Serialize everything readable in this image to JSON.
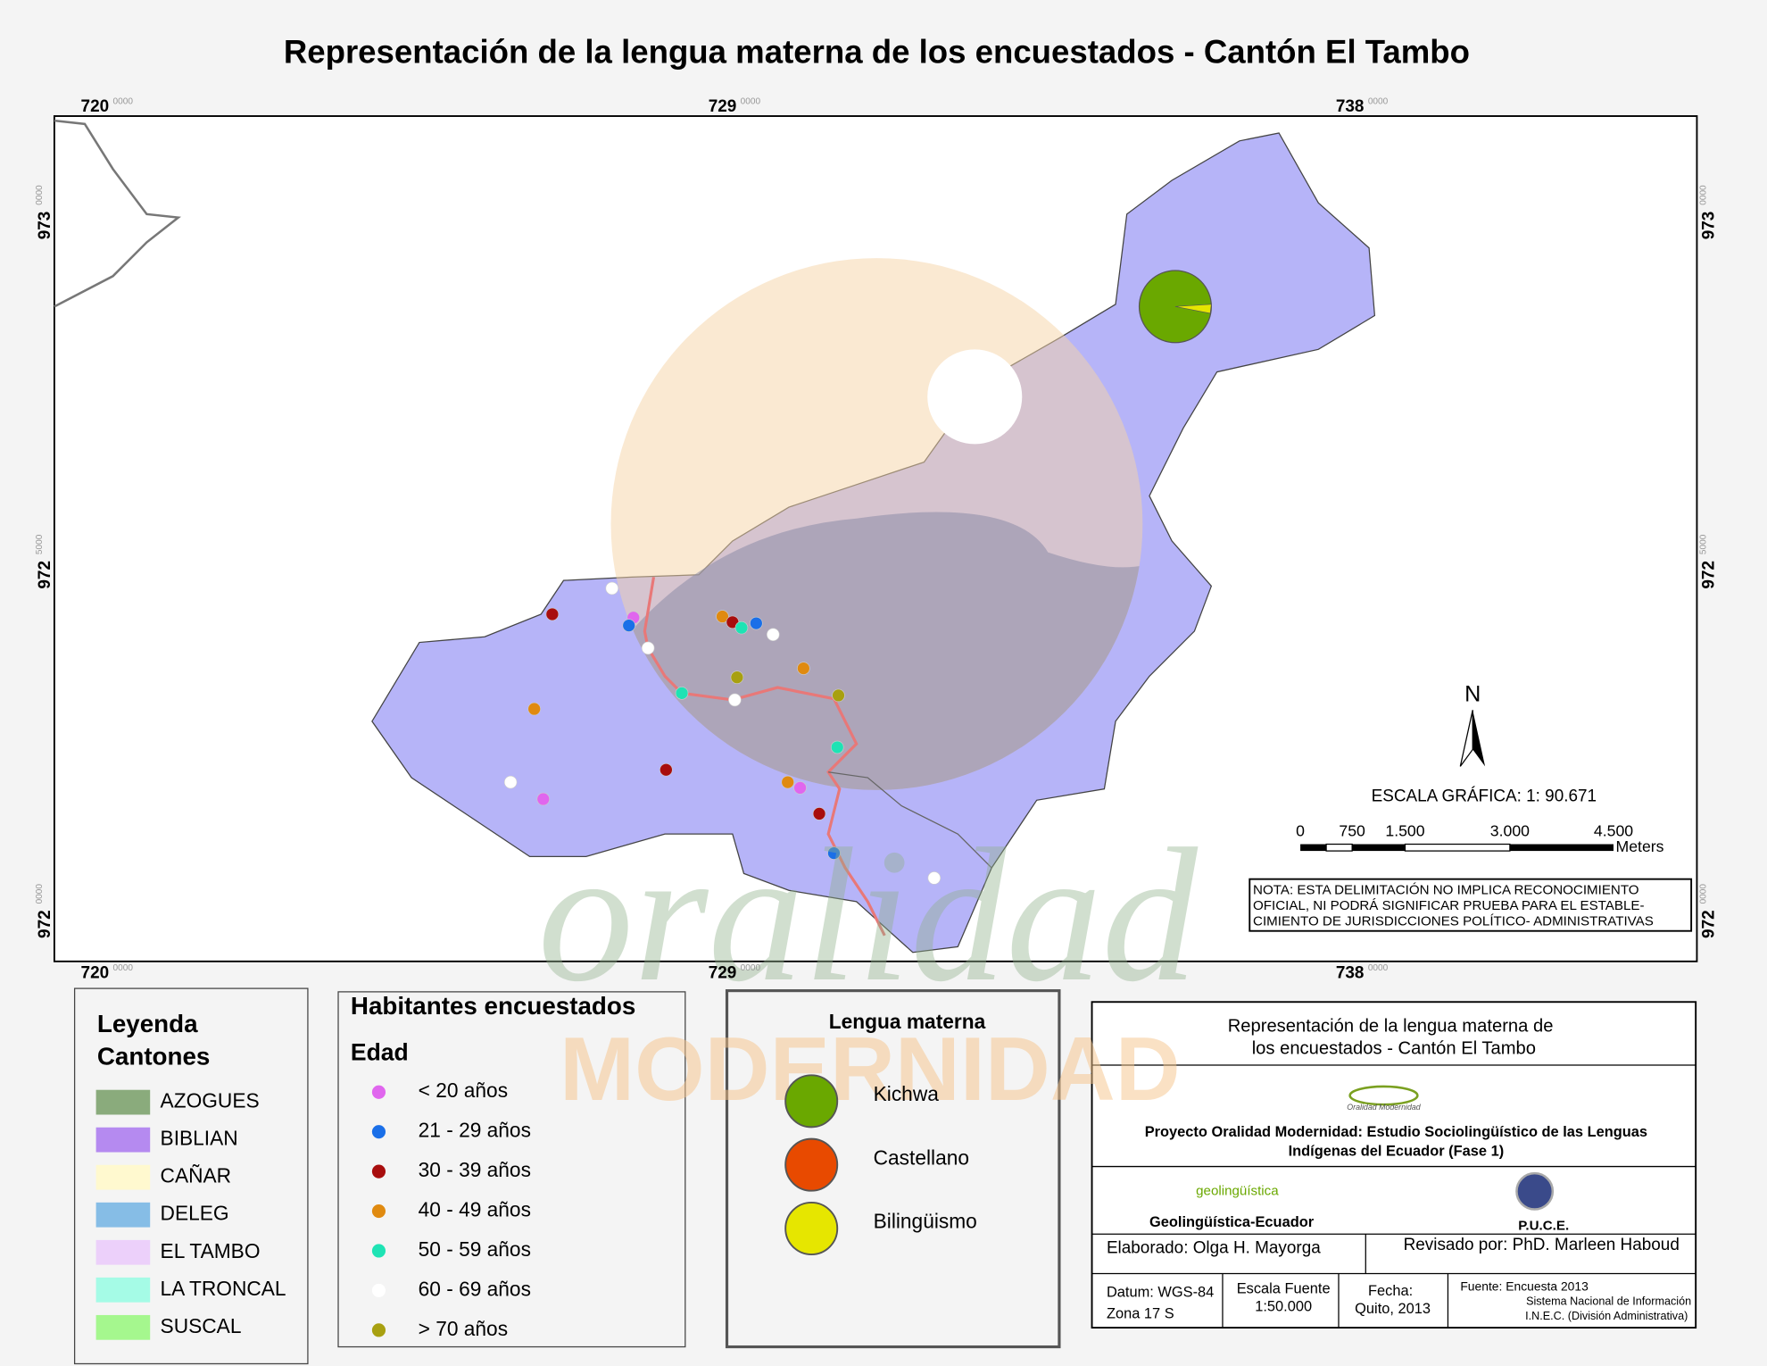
{
  "title": "Representación de la lengua materna de los encuestados - Cantón El Tambo",
  "map": {
    "x_labels": [
      {
        "main": "720",
        "sup": "0000"
      },
      {
        "main": "729",
        "sup": "0000"
      },
      {
        "main": "738",
        "sup": "0000"
      }
    ],
    "y_labels": [
      {
        "main": "973",
        "sup": "0000"
      },
      {
        "main": "972",
        "sup": "5000"
      },
      {
        "main": "972",
        "sup": "0000"
      }
    ],
    "north": "N",
    "scale_title": "ESCALA GRÁFICA: 1: 90.671",
    "scale_ticks": [
      "0",
      "750",
      "1.500",
      "3.000",
      "4.500"
    ],
    "scale_unit": "Meters",
    "note": [
      "NOTA: ESTA DELIMITACIÓN NO IMPLICA  RECONOCIMIENTO",
      "OFICIAL, NI PODRÁ SIGNIFICAR  PRUEBA PARA EL ESTABLE-",
      "CIMIENTO DE  JURISDICCIONES POLÍTICO- ADMINISTRATIVAS"
    ],
    "watermark": [
      "oralidad",
      "MODERNIDAD"
    ]
  },
  "legend_cantones": {
    "title": [
      "Leyenda",
      "Cantones"
    ],
    "items": [
      {
        "label": "AZOGUES",
        "color": "#8aab7c"
      },
      {
        "label": "BIBLIAN",
        "color": "#b58af0"
      },
      {
        "label": "CAÑAR",
        "color": "#fff9cf"
      },
      {
        "label": "DELEG",
        "color": "#86bde6"
      },
      {
        "label": "EL TAMBO",
        "color": "#ecd0fa"
      },
      {
        "label": "LA TRONCAL",
        "color": "#a5fbe6"
      },
      {
        "label": "SUSCAL",
        "color": "#a5f78e"
      }
    ]
  },
  "habitantes": {
    "title": "Habitantes encuestados",
    "subtitle": "Edad",
    "items": [
      {
        "label": "< 20 años",
        "color": "#e066ee"
      },
      {
        "label": "21 - 29 años",
        "color": "#1a6fe8"
      },
      {
        "label": "30 - 39 años",
        "color": "#a80d0d"
      },
      {
        "label": "40 - 49 años",
        "color": "#e08a10"
      },
      {
        "label": "50 - 59 años",
        "color": "#1ee3b4"
      },
      {
        "label": "60 - 69 años",
        "color": "#ffffff"
      },
      {
        "label": "> 70 años",
        "color": "#a8a010"
      }
    ]
  },
  "lengua": {
    "title": "Lengua materna",
    "items": [
      {
        "label": "Kichwa",
        "color": "#6aa800"
      },
      {
        "label": "Castellano",
        "color": "#e84a00"
      },
      {
        "label": "Bilingüismo",
        "color": "#e6e600"
      }
    ]
  },
  "info": {
    "title": [
      "Representación de la lengua materna de",
      "los encuestados - Cantón El Tambo"
    ],
    "logo": "Oralidad Modernidad",
    "project": [
      "Proyecto Oralidad Modernidad: Estudio Sociolingüístico de las Lenguas",
      "Indígenas del Ecuador  (Fase 1)"
    ],
    "geo_logo": "geolingüística",
    "geo": "Geolingüística-Ecuador",
    "puce": "P.U.C.E.",
    "elaborado": "Elaborado: Olga H. Mayorga",
    "revisado": "Revisado por: PhD. Marleen Haboud",
    "datum": [
      "Datum: WGS-84",
      "Zona 17 S"
    ],
    "escala": [
      "Escala Fuente",
      "1:50.000"
    ],
    "fecha": [
      "Fecha:",
      "Quito, 2013"
    ],
    "fuente": [
      "Fuente: Encuesta 2013",
      "Sistema Nacional de Información",
      "I.N.E.C. (División Administrativa)"
    ]
  }
}
